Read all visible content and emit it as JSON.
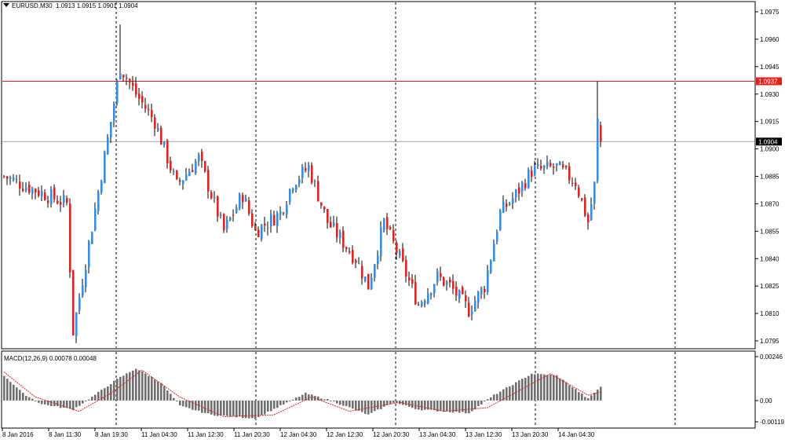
{
  "header": {
    "symbol_label": "EURUSD,M30",
    "ohlc": [
      "1.0913",
      "1.0915",
      "1.0901",
      "1.0904"
    ]
  },
  "macd_header": {
    "label": "MACD(12,26,9)",
    "values": [
      "0.00078",
      "0.00048"
    ]
  },
  "colors": {
    "bull": "#2f8fe6",
    "bear": "#e8201c",
    "price_line": "#9aa0a6",
    "level_line": "#e8201c",
    "histogram": "#707070",
    "signal": "#e8201c",
    "grid_vertical": "#000000"
  },
  "chart_data": [
    {
      "type": "candlestick",
      "ylim": [
        1.0795,
        1.0975
      ],
      "y_ticks": [
        "1.0975",
        "1.0960",
        "1.0945",
        "1.0930",
        "1.0915",
        "1.0900",
        "1.0885",
        "1.0870",
        "1.0855",
        "1.0840",
        "1.0825",
        "1.0810",
        "1.0795"
      ],
      "x_ticks": [
        "8 Jan 2016",
        "8 Jan 11:30",
        "8 Jan 19:30",
        "11 Jan 04:30",
        "11 Jan 12:30",
        "11 Jan 20:30",
        "12 Jan 04:30",
        "12 Jan 12:30",
        "12 Jan 20:30",
        "13 Jan 04:30",
        "13 Jan 12:30",
        "13 Jan 20:30",
        "14 Jan 04:30"
      ],
      "day_separators": [
        "8 Jan 2016",
        "11 Jan",
        "12 Jan",
        "13 Jan",
        "14 Jan",
        "15 Jan"
      ],
      "level_line": {
        "value": 1.0937,
        "label": "1.0937"
      },
      "price_line": {
        "value": 1.0904,
        "label": "1.0904"
      },
      "key_points": [
        {
          "t": 0,
          "price": 1.0885
        },
        {
          "t": 20,
          "price": 1.087
        },
        {
          "t": 22,
          "price": 1.08
        },
        {
          "t": 34,
          "price": 1.0915
        },
        {
          "t": 37,
          "price": 1.0945
        },
        {
          "t": 42,
          "price": 1.093
        },
        {
          "t": 48,
          "price": 1.0915
        },
        {
          "t": 55,
          "price": 1.088
        },
        {
          "t": 62,
          "price": 1.0895
        },
        {
          "t": 70,
          "price": 1.0855
        },
        {
          "t": 76,
          "price": 1.0875
        },
        {
          "t": 80,
          "price": 1.0855
        },
        {
          "t": 88,
          "price": 1.0865
        },
        {
          "t": 92,
          "price": 1.0882
        },
        {
          "t": 97,
          "price": 1.089
        },
        {
          "t": 103,
          "price": 1.086
        },
        {
          "t": 112,
          "price": 1.084
        },
        {
          "t": 116,
          "price": 1.0825
        },
        {
          "t": 121,
          "price": 1.086
        },
        {
          "t": 126,
          "price": 1.084
        },
        {
          "t": 132,
          "price": 1.0815
        },
        {
          "t": 138,
          "price": 1.083
        },
        {
          "t": 142,
          "price": 1.0825
        },
        {
          "t": 148,
          "price": 1.0812
        },
        {
          "t": 153,
          "price": 1.0825
        },
        {
          "t": 158,
          "price": 1.0865
        },
        {
          "t": 163,
          "price": 1.0875
        },
        {
          "t": 168,
          "price": 1.0888
        },
        {
          "t": 176,
          "price": 1.089
        },
        {
          "t": 182,
          "price": 1.0882
        },
        {
          "t": 186,
          "price": 1.086
        },
        {
          "t": 188,
          "price": 1.088
        },
        {
          "t": 189,
          "price": 1.0915
        },
        {
          "t": 190,
          "price": 1.0904
        }
      ]
    },
    {
      "type": "bar",
      "name": "MACD(12,26,9)",
      "ylim": [
        -0.00119,
        0.00246
      ],
      "y_ticks": [
        "0.00246",
        "0.00",
        "-0.00119"
      ],
      "histogram_key_points": [
        {
          "t": 0,
          "value": 0.0014
        },
        {
          "t": 6,
          "value": 0.0004
        },
        {
          "t": 12,
          "value": -0.0002
        },
        {
          "t": 22,
          "value": -0.0005
        },
        {
          "t": 28,
          "value": 0.0002
        },
        {
          "t": 36,
          "value": 0.0012
        },
        {
          "t": 42,
          "value": 0.0018
        },
        {
          "t": 50,
          "value": 0.001
        },
        {
          "t": 56,
          "value": -0.0003
        },
        {
          "t": 66,
          "value": -0.0008
        },
        {
          "t": 80,
          "value": -0.001
        },
        {
          "t": 88,
          "value": -0.0003
        },
        {
          "t": 96,
          "value": 0.0004
        },
        {
          "t": 104,
          "value": 0.0
        },
        {
          "t": 116,
          "value": -0.0008
        },
        {
          "t": 124,
          "value": -0.0001
        },
        {
          "t": 132,
          "value": -0.0005
        },
        {
          "t": 148,
          "value": -0.0007
        },
        {
          "t": 156,
          "value": 0.0003
        },
        {
          "t": 168,
          "value": 0.0015
        },
        {
          "t": 176,
          "value": 0.0014
        },
        {
          "t": 186,
          "value": 0.0001
        },
        {
          "t": 190,
          "value": 0.00078
        }
      ],
      "signal_key_points": [
        {
          "t": 0,
          "value": 0.0016
        },
        {
          "t": 10,
          "value": 0.0002
        },
        {
          "t": 24,
          "value": -0.0006
        },
        {
          "t": 34,
          "value": 0.0004
        },
        {
          "t": 44,
          "value": 0.0017
        },
        {
          "t": 56,
          "value": 0.0002
        },
        {
          "t": 70,
          "value": -0.0009
        },
        {
          "t": 86,
          "value": -0.0008
        },
        {
          "t": 98,
          "value": 0.0002
        },
        {
          "t": 110,
          "value": -0.0006
        },
        {
          "t": 126,
          "value": -0.0001
        },
        {
          "t": 140,
          "value": -0.0006
        },
        {
          "t": 154,
          "value": -0.0004
        },
        {
          "t": 174,
          "value": 0.0015
        },
        {
          "t": 186,
          "value": 0.0003
        },
        {
          "t": 190,
          "value": 0.00048
        }
      ]
    }
  ]
}
